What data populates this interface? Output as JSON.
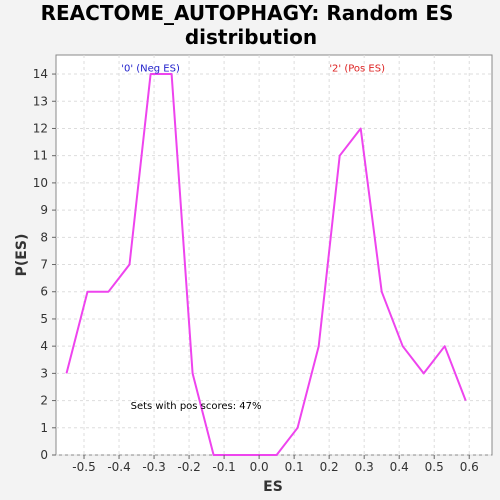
{
  "chart_data": {
    "type": "line",
    "title_lines": [
      "REACTOME_AUTOPHAGY: Random ES",
      "distribution"
    ],
    "xlabel": "ES",
    "ylabel": "P(ES)",
    "xlim": [
      -0.58,
      0.665
    ],
    "ylim": [
      0,
      14.7
    ],
    "xticks": [
      -0.5,
      -0.4,
      -0.3,
      -0.2,
      -0.1,
      0.0,
      0.1,
      0.2,
      0.3,
      0.4,
      0.5,
      0.6
    ],
    "xtick_labels": [
      "-0.5",
      "-0.4",
      "-0.3",
      "-0.2",
      "-0.1",
      "0.0",
      "0.1",
      "0.2",
      "0.3",
      "0.4",
      "0.5",
      "0.6"
    ],
    "yticks": [
      0,
      1,
      2,
      3,
      4,
      5,
      6,
      7,
      8,
      9,
      10,
      11,
      12,
      13,
      14
    ],
    "ytick_labels": [
      "0",
      "1",
      "2",
      "3",
      "4",
      "5",
      "6",
      "7",
      "8",
      "9",
      "10",
      "11",
      "12",
      "13",
      "14"
    ],
    "grid": true,
    "series": [
      {
        "color": "#ee44ee",
        "x": [
          -0.55,
          -0.49,
          -0.43,
          -0.37,
          -0.31,
          -0.25,
          -0.19,
          -0.13,
          -0.07,
          -0.01,
          0.05,
          0.11,
          0.17,
          0.23,
          0.29,
          0.35,
          0.41,
          0.47,
          0.53,
          0.59
        ],
        "y": [
          3,
          6,
          6,
          7,
          14,
          14,
          3,
          0,
          0,
          0,
          0,
          1,
          4,
          11,
          12,
          6,
          4,
          3,
          4,
          2
        ]
      }
    ],
    "annotations": [
      {
        "text": "'0' (Neg ES)",
        "x": -0.31,
        "y": 14.2,
        "color": "#2222cc"
      },
      {
        "text": "'2' (Pos ES)",
        "x": 0.28,
        "y": 14.2,
        "color": "#dd2222"
      },
      {
        "text": "Sets with pos scores: 47%",
        "x": -0.18,
        "y": 1.8,
        "color": "#000000"
      }
    ]
  }
}
